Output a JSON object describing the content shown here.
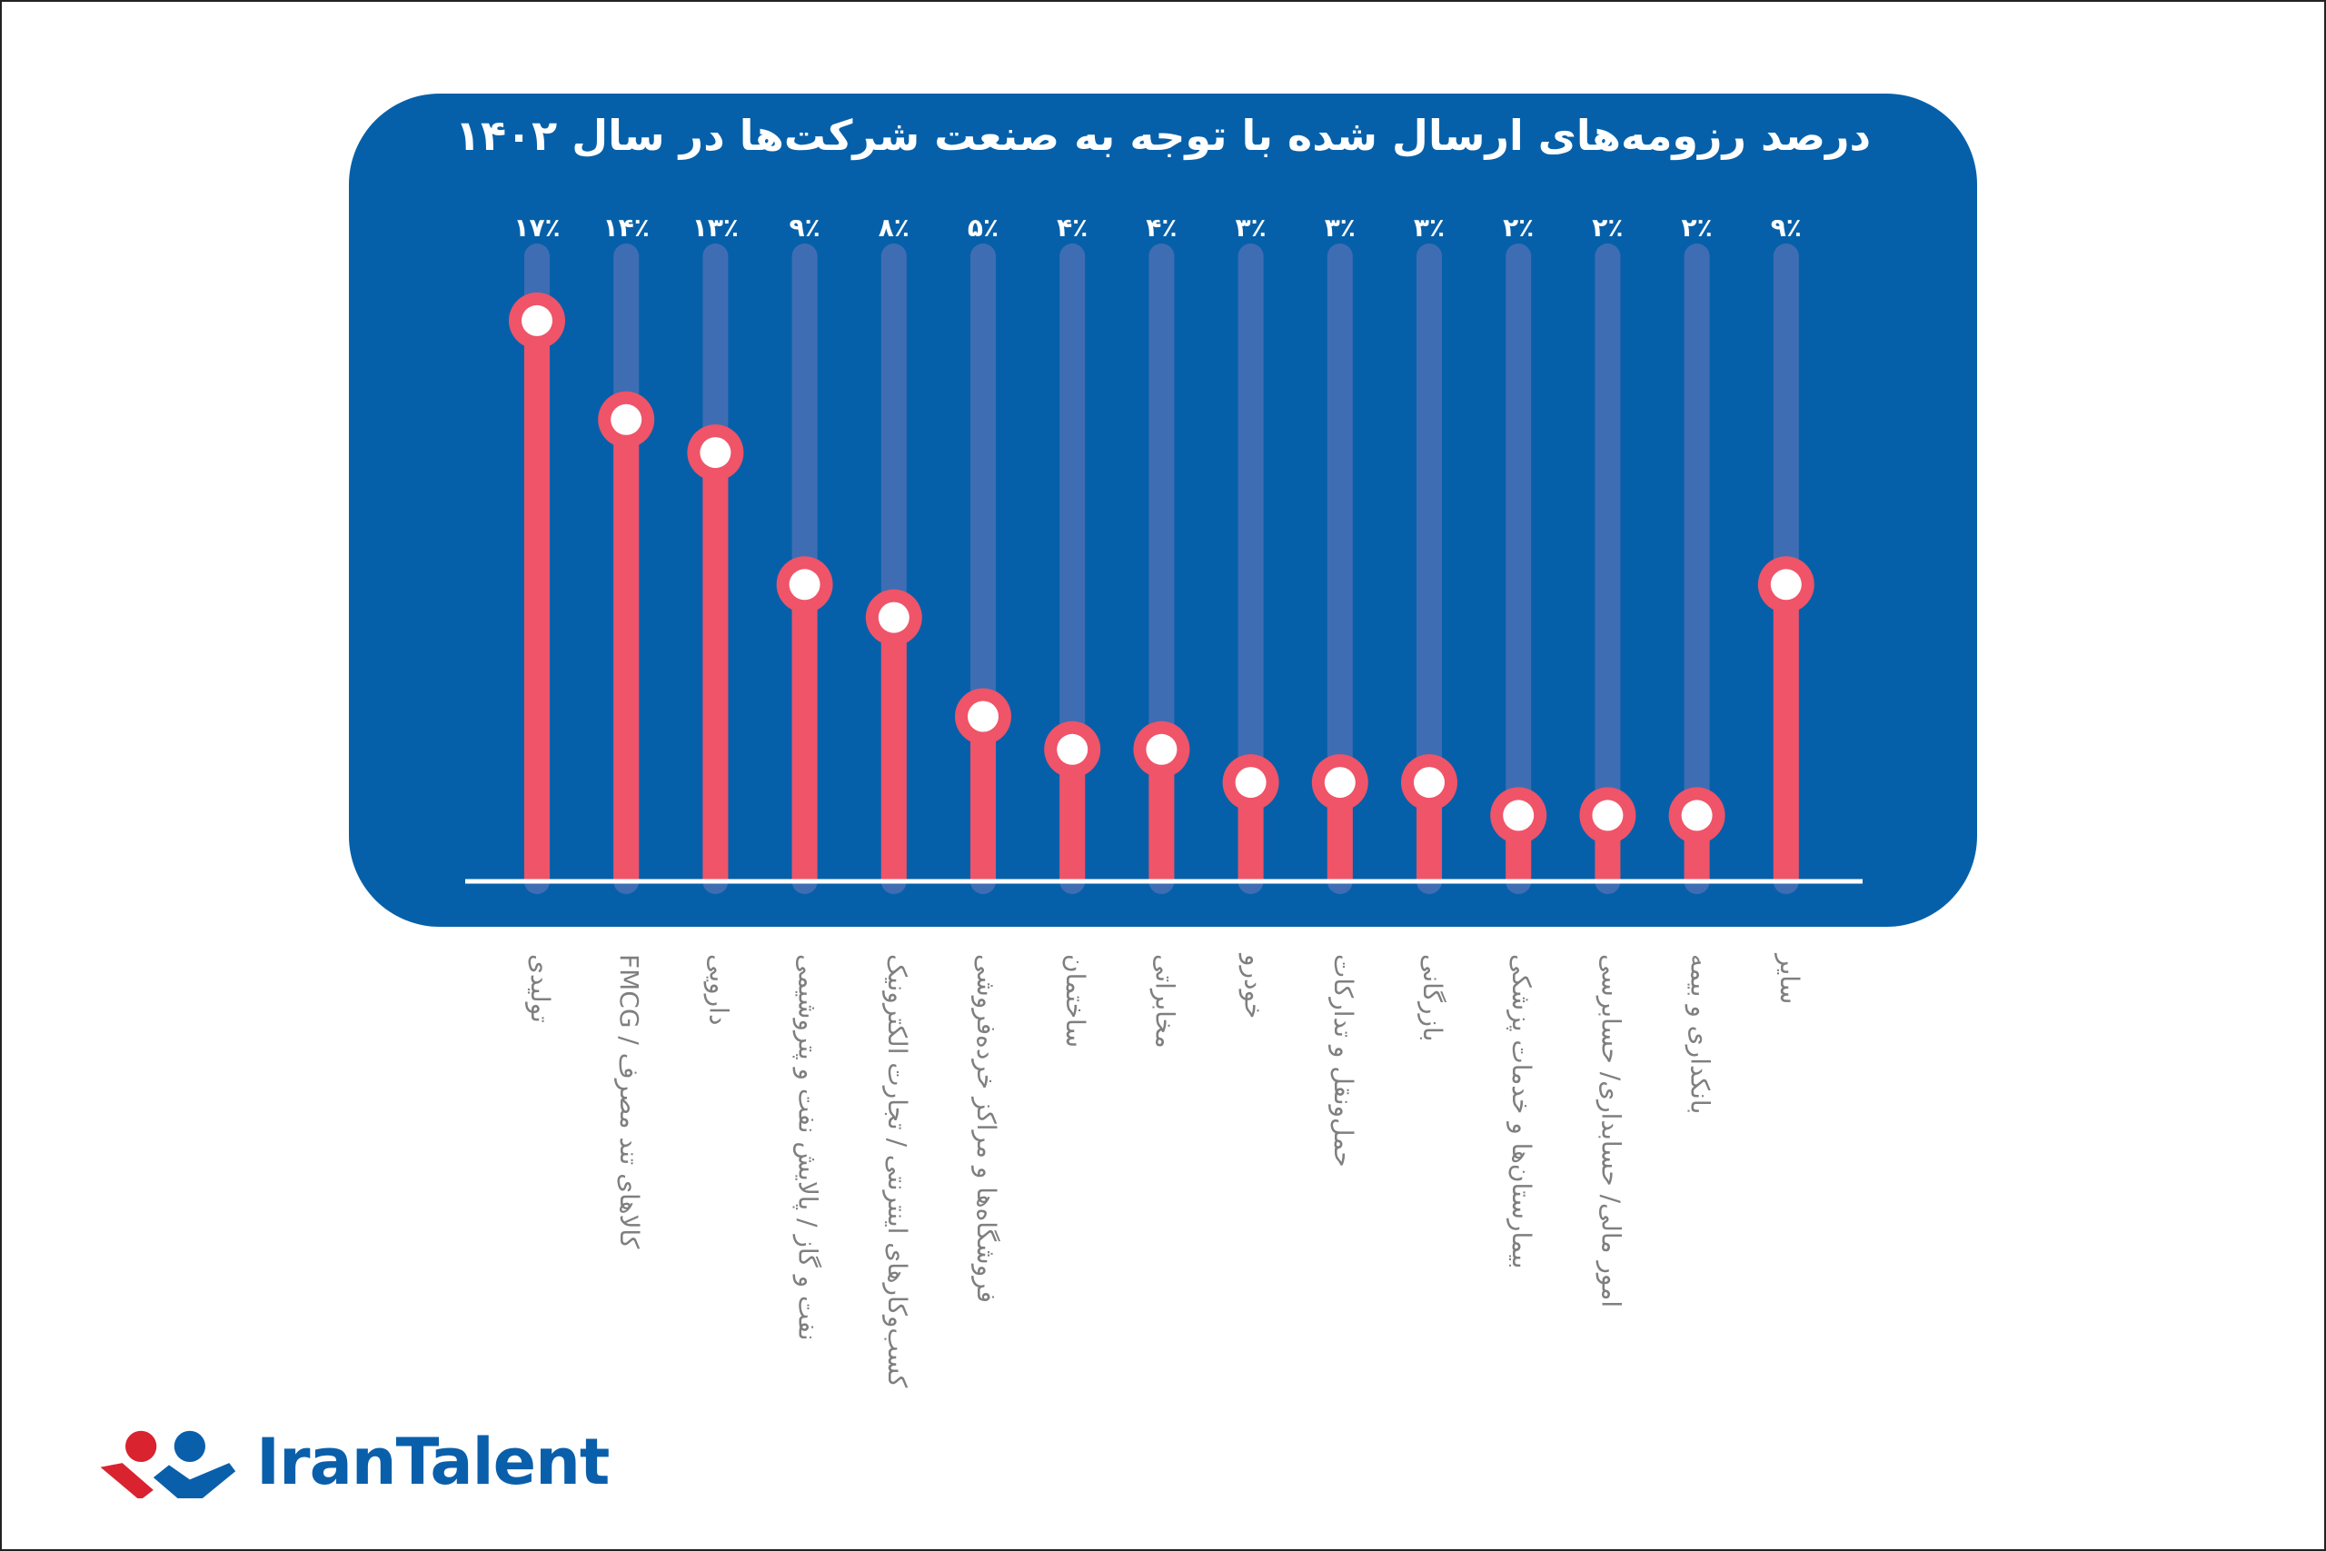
{
  "chart_data": {
    "type": "lollipop",
    "title": "درصد رزومه‌های ارسال شده با توجه به صنعت شرکت‌ها در سال ۱۴۰۲",
    "categories": [
      "تولیدی",
      "کالاهای تند مصرف / FMCG",
      "دارویی",
      "نفت و گاز / پالایش نفت و پتروشیمی",
      "کسب‌وکارهای اینترنتی / تجارت الکترونیک",
      "فروشگاه‌ها و مراکز خرده‌فروشی",
      "ساختمان",
      "مخابراتی",
      "خودرو",
      "حمل‌ونقل و تدارکات",
      "بازرگانی",
      "بیمارستان‌ها و خدمات پزشکی",
      "امور مالی/ حسابداری/ حسابرسی",
      "بانکداری و بیمه",
      "سایر"
    ],
    "values": [
      17,
      14,
      13,
      9,
      8,
      5,
      4,
      4,
      3,
      3,
      3,
      2,
      2,
      2,
      9
    ],
    "value_labels": [
      "۱۷٪",
      "۱۴٪",
      "۱۳٪",
      "۹٪",
      "۸٪",
      "۵٪",
      "۴٪",
      "۴٪",
      "۳٪",
      "۳٪",
      "۳٪",
      "۲٪",
      "۲٪",
      "۲٪",
      "۹٪"
    ],
    "ylim": [
      0,
      20
    ],
    "unit": "%",
    "grid": false,
    "colors": {
      "panel": "#0660a9",
      "track": "#3f6db3",
      "stem": "#ef5468",
      "dot_center": "#ffffff",
      "label": "#7f7f7f"
    }
  },
  "logo": {
    "text": "IranTalent",
    "red": "#d9232e",
    "blue": "#0a5fab"
  }
}
